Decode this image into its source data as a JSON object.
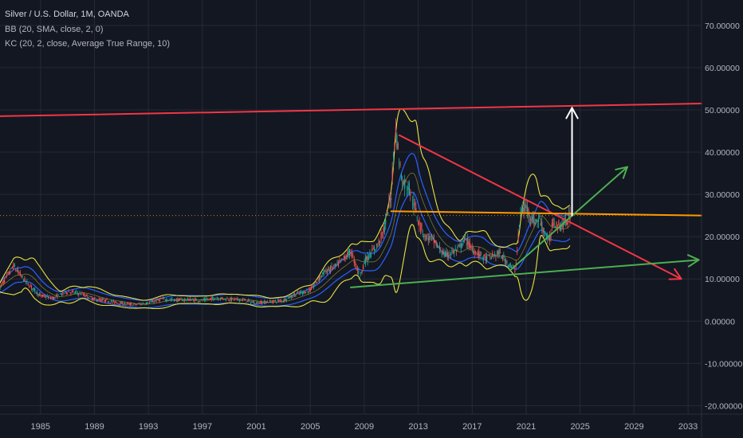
{
  "legend": {
    "symbol": "Silver / U.S. Dollar, 1M, OANDA",
    "bb": "BB (20, SMA, close, 2, 0)",
    "kc": "KC (20, 2, close, Average True Range, 10)"
  },
  "colors": {
    "background": "#131722",
    "grid": "#262a35",
    "axis_text": "#b2b5be",
    "candle_up": "#26a69a",
    "candle_down": "#ef5350",
    "bb_line": "#e8e33f",
    "kc_line": "#2962ff",
    "red_line": "#f23645",
    "orange_line": "#ff9800",
    "green_line": "#4caf50",
    "white_arrow": "#ffffff"
  },
  "chart_data": {
    "type": "candlestick",
    "title": "Silver / U.S. Dollar, 1M, OANDA",
    "x_ticks": [
      "1985",
      "1989",
      "1993",
      "1997",
      "2001",
      "2005",
      "2009",
      "2013",
      "2017",
      "2021",
      "2025",
      "2029",
      "2033"
    ],
    "y_ticks": [
      "70.00000",
      "60.00000",
      "50.00000",
      "40.00000",
      "30.00000",
      "20.00000",
      "10.00000",
      "0.00000",
      "-10.00000",
      "-20.00000"
    ],
    "xlim": [
      1982.0,
      2034.0
    ],
    "ylim": [
      -22,
      76
    ],
    "grid": true,
    "current_price_line": 25.0,
    "price_series": {
      "name": "Silver / U.S. Dollar",
      "x": [
        1982.0,
        1983.0,
        1984.0,
        1985.0,
        1986.0,
        1987.0,
        1988.0,
        1989.0,
        1990.0,
        1991.0,
        1992.0,
        1993.0,
        1994.0,
        1995.0,
        1996.0,
        1997.0,
        1998.0,
        1999.0,
        2000.0,
        2001.0,
        2002.0,
        2003.0,
        2004.0,
        2005.0,
        2006.0,
        2007.0,
        2008.0,
        2008.7,
        2009.0,
        2010.0,
        2010.5,
        2011.0,
        2011.3,
        2011.8,
        2012.3,
        2013.0,
        2013.5,
        2014.0,
        2015.0,
        2016.0,
        2016.5,
        2017.0,
        2018.0,
        2019.0,
        2020.2,
        2020.6,
        2021.0,
        2021.6,
        2022.0,
        2022.7,
        2023.0,
        2023.5,
        2024.0,
        2024.3
      ],
      "y": [
        8,
        13,
        9,
        6,
        5.5,
        7,
        6.5,
        5.2,
        4.8,
        4.2,
        3.9,
        4.3,
        5.2,
        5.0,
        5.1,
        4.9,
        5.5,
        5.2,
        5.0,
        4.3,
        4.6,
        4.9,
        6.5,
        7.3,
        11.5,
        13.2,
        16.5,
        10.5,
        14,
        18,
        22,
        30,
        46,
        33,
        32,
        24,
        20,
        19.5,
        15.5,
        17,
        19.5,
        17,
        14.8,
        16,
        12,
        26,
        27,
        23.5,
        24,
        18.5,
        23.5,
        22.5,
        23.5,
        25
      ]
    },
    "drawings": [
      {
        "type": "trendline",
        "color": "red",
        "from": [
          1982.0,
          48.5
        ],
        "to": [
          2034.0,
          51.5
        ]
      },
      {
        "type": "trendline",
        "color": "red",
        "from": [
          2011.6,
          44.0
        ],
        "to": [
          2032.5,
          10.0
        ],
        "arrow": true
      },
      {
        "type": "horizontal",
        "color": "orange",
        "from": [
          2011.0,
          26.0
        ],
        "to": [
          2034.0,
          25.0
        ]
      },
      {
        "type": "trendline",
        "color": "green",
        "from": [
          2008.0,
          8.0
        ],
        "to": [
          2033.8,
          14.5
        ],
        "arrow": true
      },
      {
        "type": "trendline",
        "color": "green",
        "from": [
          2019.8,
          12.0
        ],
        "to": [
          2028.5,
          36.5
        ],
        "arrow": true
      },
      {
        "type": "arrow",
        "color": "white",
        "from": [
          2024.4,
          25.0
        ],
        "to": [
          2024.4,
          50.5
        ]
      }
    ]
  }
}
